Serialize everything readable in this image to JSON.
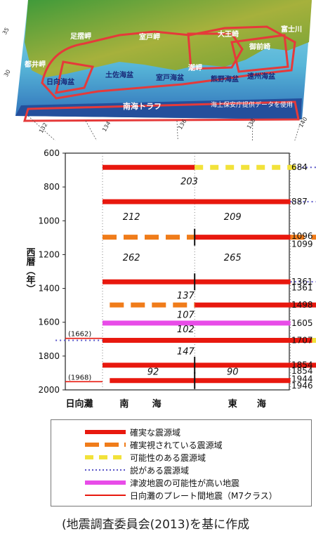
{
  "map": {
    "regions": [
      {
        "label": "都井岬"
      },
      {
        "label": "足摺岬"
      },
      {
        "label": "室戸岬"
      },
      {
        "label": "潮岬"
      },
      {
        "label": "大王崎"
      },
      {
        "label": "御前崎"
      },
      {
        "label": "富士川"
      },
      {
        "label": "日向海盆"
      },
      {
        "label": "土佐海盆"
      },
      {
        "label": "室戸海盆"
      },
      {
        "label": "熊野海盆"
      },
      {
        "label": "遠州海盆"
      }
    ],
    "trough_label": "南海トラフ",
    "data_source": "海上保安庁提供データを使用",
    "lat_labels": [
      "35",
      "30"
    ],
    "lon_labels": [
      "130",
      "132",
      "134",
      "136",
      "138",
      "140"
    ]
  },
  "chart_data": {
    "type": "timeline",
    "ylabel": "西暦（年）",
    "yticks": [
      600,
      800,
      1000,
      1200,
      1400,
      1600,
      1800,
      2000
    ],
    "ylim": [
      600,
      2000
    ],
    "segments": [
      "日向灘",
      "南",
      "海",
      "東",
      "海"
    ],
    "right_labels": [
      "684",
      "887",
      "1096",
      "1099",
      "1361",
      "1361",
      "1498",
      "1605",
      "1707",
      "1854",
      "1854",
      "1944",
      "1946"
    ],
    "intervals": [
      "203",
      "212",
      "209",
      "262",
      "265",
      "137",
      "107",
      "102",
      "147",
      "92",
      "90"
    ],
    "hyuganada": [
      "(1662)",
      "(1968)"
    ],
    "events": [
      {
        "year": 684,
        "sure": [
          0,
          2.55
        ],
        "possible": [
          2.55,
          5.4
        ],
        "theory": [
          5.4,
          6.2
        ]
      },
      {
        "year": 887,
        "sure": [
          0,
          5.2
        ],
        "theory": [
          5.2,
          6.2
        ]
      },
      {
        "year": 1097,
        "probable": [
          0,
          2.55
        ],
        "sure": [
          2.55,
          5.2
        ],
        "probable2": [
          5.2,
          6.2
        ],
        "split": true
      },
      {
        "year": 1361,
        "sure": [
          0,
          5.2
        ],
        "theory": [
          5.2,
          6.2
        ],
        "split": true
      },
      {
        "year": 1498,
        "probable": [
          0.2,
          2.55
        ],
        "sure": [
          2.55,
          6.2
        ]
      },
      {
        "year": 1605,
        "tsunami": [
          0,
          5.2
        ]
      },
      {
        "year": 1707,
        "sure": [
          0,
          5.8
        ],
        "possible": [
          5.8,
          6.2
        ],
        "theory": [
          -1.3,
          0
        ]
      },
      {
        "year": 1854,
        "sure": [
          0,
          6.2
        ],
        "split": true
      },
      {
        "year": 1945,
        "sure": [
          0.2,
          5.2
        ],
        "split": true
      }
    ]
  },
  "legend": {
    "items": [
      "確実な震源域",
      "確実視されている震源域",
      "可能性のある震源域",
      "説がある震源域",
      "津波地震の可能性が高い地震",
      "日向灘のプレート間地震（M7クラス）"
    ]
  },
  "caption": "(地震調査委員会(2013)を基に作成",
  "colors": {
    "sure": "#e8180e",
    "probable": "#f07c1a",
    "possible": "#f2e23a",
    "theory": "#5a56c8",
    "tsunami": "#e84ce8",
    "hyuganada": "#e8180e"
  }
}
